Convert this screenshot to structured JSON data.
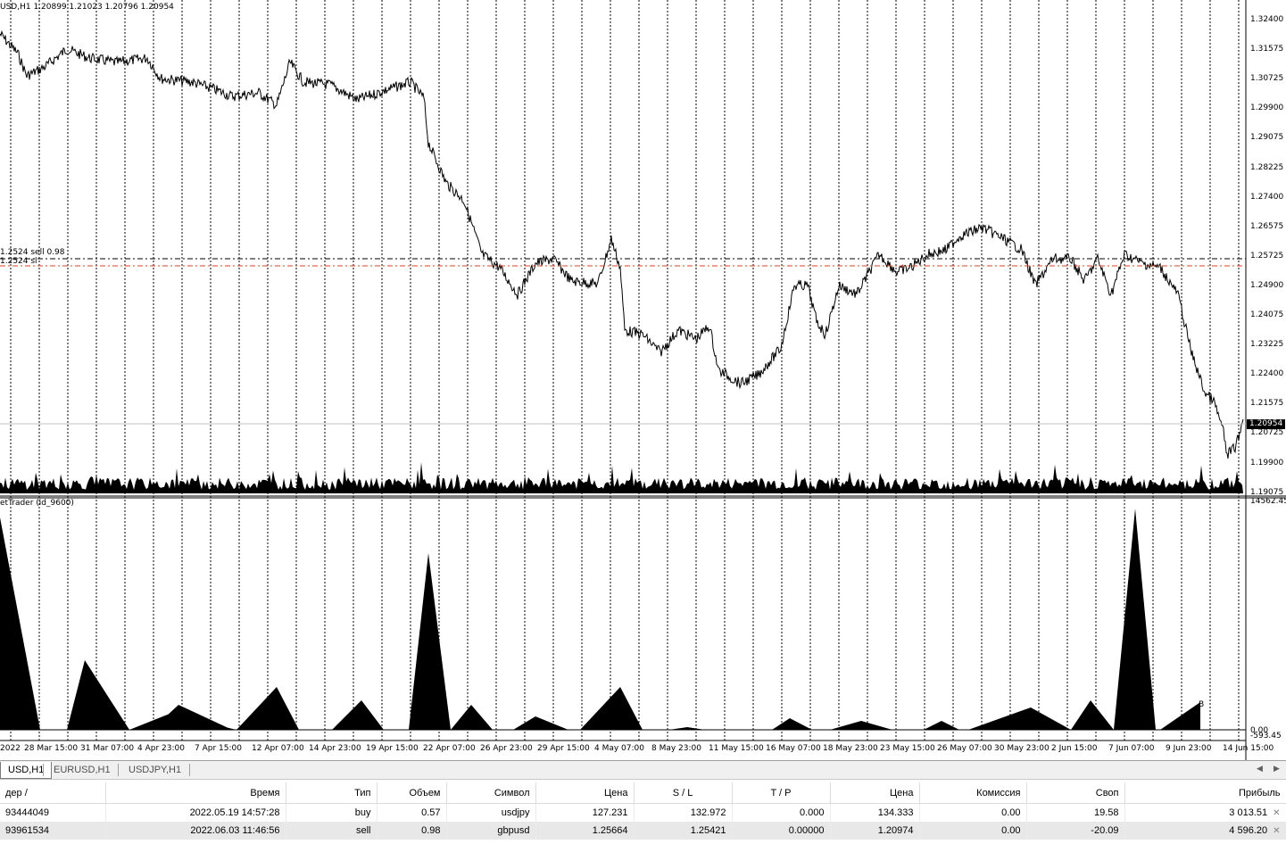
{
  "chart": {
    "header": "USD,H1  1.20899 1.21023 1.20796 1.20954",
    "indicator_label": "etTrader (id_9600)",
    "current_price": "1.20954",
    "order_label_top": "1.2524 sell 0.98",
    "order_label_bottom": "1.2524 sl",
    "price_axis": [
      "1.32400",
      "1.31575",
      "1.30725",
      "1.29900",
      "1.29075",
      "1.28225",
      "1.27400",
      "1.26575",
      "1.25725",
      "1.24900",
      "1.24075",
      "1.23225",
      "1.22400",
      "1.21575",
      "1.20725",
      "1.19900",
      "1.19075"
    ],
    "indicator_axis_top": "14562.45",
    "indicator_axis_bottom_a": "-593.45",
    "indicator_axis_bottom_b": "0.00",
    "indicator_marker": "B",
    "time_axis": [
      "2022",
      "28 Mar 15:00",
      "31 Mar 07:00",
      "4 Apr 23:00",
      "7 Apr 15:00",
      "12 Apr 07:00",
      "14 Apr 23:00",
      "19 Apr 15:00",
      "22 Apr 07:00",
      "26 Apr 23:00",
      "29 Apr 15:00",
      "4 May 07:00",
      "8 May 23:00",
      "11 May 15:00",
      "16 May 07:00",
      "18 May 23:00",
      "23 May 15:00",
      "26 May 07:00",
      "30 May 23:00",
      "2 Jun 15:00",
      "7 Jun 07:00",
      "9 Jun 23:00",
      "14 Jun 15:00"
    ],
    "colors": {
      "line": "#000000",
      "order_line": "#000000",
      "sl_line": "#e8401c",
      "bid_line": "#c0c0c0"
    }
  },
  "tabs": {
    "items": [
      "USD,H1",
      "EURUSD,H1",
      "USDJPY,H1"
    ],
    "active": 0
  },
  "table": {
    "headers": [
      "дер  /",
      "Время",
      "Тип",
      "Объем",
      "Символ",
      "Цена",
      "S / L",
      "T / P",
      "Цена",
      "Комиссия",
      "Своп",
      "Прибыль"
    ],
    "rows": [
      [
        "93444049",
        "2022.05.19 14:57:28",
        "buy",
        "0.57",
        "usdjpy",
        "127.231",
        "132.972",
        "0.000",
        "134.333",
        "0.00",
        "19.58",
        "3 013.51"
      ],
      [
        "93961534",
        "2022.06.03 11:46:56",
        "sell",
        "0.98",
        "gbpusd",
        "1.25664",
        "1.25421",
        "0.00000",
        "1.20974",
        "0.00",
        "-20.09",
        "4 596.20"
      ]
    ]
  }
}
